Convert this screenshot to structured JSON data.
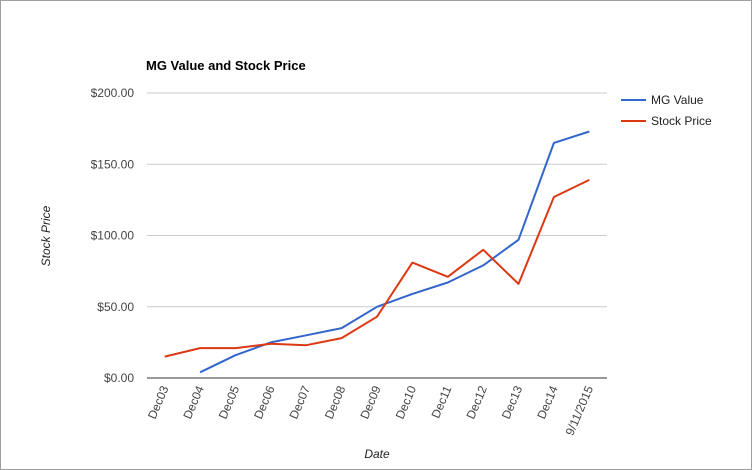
{
  "chart_data": {
    "type": "line",
    "title": "MG Value and Stock Price",
    "xlabel": "Date",
    "ylabel": "Stock Price",
    "categories": [
      "Dec03",
      "Dec04",
      "Dec05",
      "Dec06",
      "Dec07",
      "Dec08",
      "Dec09",
      "Dec10",
      "Dec11",
      "Dec12",
      "Dec13",
      "Dec14",
      "9/11/2015"
    ],
    "y_ticks": [
      "$0.00",
      "$50.00",
      "$100.00",
      "$150.00",
      "$200.00"
    ],
    "ylim": [
      0,
      200
    ],
    "grid": true,
    "legend_position": "right",
    "series": [
      {
        "name": "MG Value",
        "color": "#3366cc",
        "values": [
          null,
          4,
          16,
          25,
          30,
          35,
          50,
          59,
          67,
          79,
          97,
          165,
          173
        ]
      },
      {
        "name": "Stock Price",
        "color": "#dc3912",
        "values": [
          15,
          21,
          21,
          24,
          23,
          28,
          43,
          81,
          71,
          90,
          66,
          127,
          139
        ]
      }
    ]
  }
}
